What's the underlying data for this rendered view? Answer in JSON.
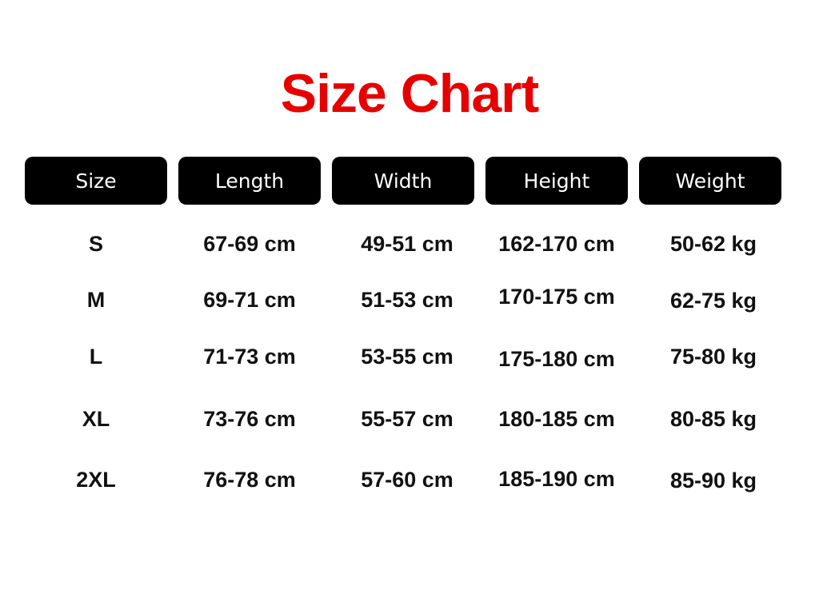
{
  "title": "Size Chart",
  "colors": {
    "title": "#e60000",
    "header_bg": "#000000",
    "header_text": "#ffffff"
  },
  "headers": [
    "Size",
    "Length",
    "Width",
    "Height",
    "Weight"
  ],
  "rows": [
    [
      "S",
      "67-69 cm",
      "49-51 cm",
      "162-170 cm",
      "50-62 kg"
    ],
    [
      "M",
      "69-71 cm",
      "51-53 cm",
      "170-175 cm",
      "62-75 kg"
    ],
    [
      "L",
      "71-73 cm",
      "53-55 cm",
      "175-180 cm",
      "75-80 kg"
    ],
    [
      "XL",
      "73-76 cm",
      "55-57 cm",
      "180-185 cm",
      "80-85 kg"
    ],
    [
      "2XL",
      "76-78 cm",
      "57-60 cm",
      "185-190 cm",
      "85-90 kg"
    ]
  ]
}
